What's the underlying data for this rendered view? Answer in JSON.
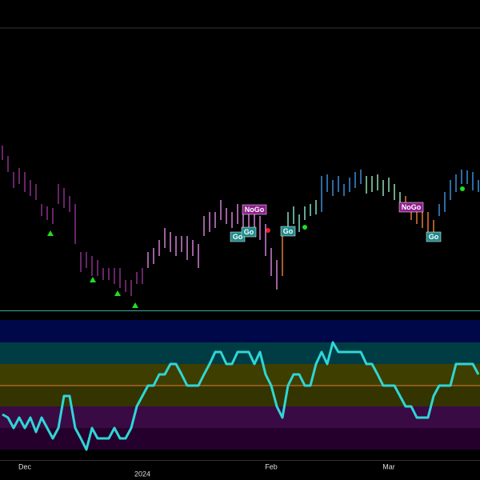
{
  "chart_data": [
    {
      "type": "range-bar",
      "categories": [
        null,
        null,
        null,
        null,
        "Dec",
        null,
        null,
        null,
        null,
        null,
        null,
        null,
        null,
        null,
        null,
        null,
        null,
        null,
        null,
        null,
        null,
        null,
        null,
        null,
        null,
        "2024",
        null,
        null,
        null,
        null,
        null,
        null,
        null,
        null,
        null,
        null,
        null,
        null,
        null,
        null,
        null,
        null,
        null,
        null,
        null,
        null,
        null,
        null,
        "Feb",
        null,
        null,
        null,
        null,
        null,
        null,
        null,
        null,
        null,
        null,
        null,
        null,
        null,
        null,
        null,
        null,
        null,
        null,
        null,
        null,
        "Mar",
        null,
        null,
        null,
        null,
        null,
        null,
        null,
        null,
        null,
        null,
        null,
        null,
        null,
        null,
        null,
        null
      ],
      "high": [
        206,
        193,
        173,
        178,
        173,
        163,
        158,
        133,
        130,
        128,
        158,
        153,
        143,
        133,
        73,
        73,
        68,
        63,
        53,
        53,
        53,
        53,
        38,
        38,
        48,
        53,
        73,
        78,
        88,
        103,
        98,
        93,
        93,
        93,
        88,
        83,
        118,
        123,
        123,
        138,
        128,
        123,
        133,
        128,
        128,
        123,
        118,
        108,
        78,
        63,
        98,
        123,
        130,
        120,
        130,
        133,
        138,
        168,
        170,
        163,
        168,
        158,
        166,
        173,
        176,
        168,
        168,
        170,
        163,
        166,
        158,
        148,
        143,
        133,
        126,
        123,
        123,
        113,
        133,
        148,
        163,
        170,
        176,
        175,
        173,
        163
      ],
      "low": [
        188,
        173,
        153,
        158,
        148,
        143,
        138,
        118,
        113,
        108,
        133,
        128,
        123,
        83,
        48,
        53,
        43,
        43,
        38,
        38,
        33,
        28,
        23,
        18,
        33,
        33,
        53,
        58,
        68,
        78,
        73,
        68,
        73,
        63,
        68,
        53,
        93,
        98,
        103,
        113,
        108,
        103,
        108,
        103,
        98,
        93,
        88,
        68,
        43,
        26,
        43,
        98,
        108,
        98,
        113,
        118,
        120,
        123,
        148,
        143,
        148,
        143,
        148,
        153,
        158,
        146,
        148,
        150,
        143,
        148,
        138,
        133,
        128,
        113,
        108,
        103,
        98,
        93,
        118,
        123,
        138,
        148,
        158,
        158,
        150,
        148
      ],
      "bar_colors": [
        "#8e2f8e",
        "#8e2f8e",
        "#8e2f8e",
        "#8e2f8e",
        "#8e2f8e",
        "#8e2f8e",
        "#8e2f8e",
        "#8e2f8e",
        "#8e2f8e",
        "#8e2f8e",
        "#8e2f8e",
        "#8e2f8e",
        "#8e2f8e",
        "#8e2f8e",
        "#8e2f8e",
        "#8e2f8e",
        "#8e2f8e",
        "#8e2f8e",
        "#8e2f8e",
        "#8e2f8e",
        "#8e2f8e",
        "#8e2f8e",
        "#8e2f8e",
        "#8e2f8e",
        "#8e2f8e",
        "#8e2f8e",
        "#d27fd6",
        "#d27fd6",
        "#d27fd6",
        "#d27fd6",
        "#d27fd6",
        "#d27fd6",
        "#d27fd6",
        "#d27fd6",
        "#d27fd6",
        "#d27fd6",
        "#d27fd6",
        "#d27fd6",
        "#d27fd6",
        "#d27fd6",
        "#d27fd6",
        "#d27fd6",
        "#d27fd6",
        "#d27fd6",
        "#d27fd6",
        "#d27fd6",
        "#d27fd6",
        "#d27fd6",
        "#d27fd6",
        "#d27fd6",
        "#e07b39",
        "#7fe0c8",
        "#7fe0c8",
        "#7fe0c8",
        "#7fe0c8",
        "#7fe0c8",
        "#7fe0c8",
        "#3a8fd9",
        "#3a8fd9",
        "#3a8fd9",
        "#3a8fd9",
        "#3a8fd9",
        "#3a8fd9",
        "#3a8fd9",
        "#3a8fd9",
        "#8fe0b0",
        "#8fe0b0",
        "#8fe0b0",
        "#8fe0b0",
        "#8fe0b0",
        "#8fe0b0",
        "#8fe0b0",
        "#e07b39",
        "#e07b39",
        "#e07b39",
        "#e07b39",
        "#e07b39",
        "#e07b39",
        "#3a8fd9",
        "#3a8fd9",
        "#3a8fd9",
        "#3a8fd9",
        "#3a8fd9",
        "#3a8fd9",
        "#3a8fd9",
        "#3a8fd9"
      ],
      "ylim": [
        0,
        353
      ],
      "annotations": [
        {
          "text": "NoGo",
          "color": "#8e1f8e"
        },
        {
          "text": "Go",
          "color": "#1f8a8a"
        },
        {
          "text": "Go",
          "color": "#1f8a8a"
        },
        {
          "text": "Go",
          "color": "#1f8a8a"
        },
        {
          "text": "NoGo",
          "color": "#8e1f8e"
        },
        {
          "text": "Go",
          "color": "#1f8a8a"
        }
      ]
    },
    {
      "type": "line",
      "values": [
        -36,
        -40,
        -53,
        -40,
        -53,
        -40,
        -58,
        -40,
        -53,
        -66,
        -53,
        -13,
        -13,
        -53,
        -66,
        -80,
        -53,
        -66,
        -66,
        -66,
        -53,
        -66,
        -66,
        -53,
        -26,
        -13,
        0,
        0,
        14,
        14,
        27,
        27,
        14,
        0,
        0,
        0,
        14,
        27,
        42,
        42,
        27,
        27,
        42,
        42,
        42,
        27,
        42,
        14,
        0,
        -26,
        -40,
        0,
        14,
        14,
        0,
        0,
        27,
        42,
        27,
        54,
        42,
        42,
        42,
        42,
        42,
        27,
        27,
        14,
        0,
        0,
        0,
        -13,
        -26,
        -26,
        -40,
        -40,
        -40,
        -13,
        0,
        0,
        0,
        27,
        27,
        27,
        27,
        14
      ],
      "color": "#2fd6d6",
      "ylim": [
        -93,
        92
      ],
      "zones": [
        {
          "from": 54,
          "to": 82,
          "color": "#00084a"
        },
        {
          "from": 27,
          "to": 54,
          "color": "#003c44"
        },
        {
          "from": 0,
          "to": 27,
          "color": "#3e3e00"
        },
        {
          "from": -26,
          "to": 0,
          "color": "#343400"
        },
        {
          "from": -53,
          "to": -26,
          "color": "#3a0a44"
        },
        {
          "from": -80,
          "to": -53,
          "color": "#26002c"
        }
      ],
      "midline": 0,
      "midline_color": "#e07b39"
    }
  ]
}
